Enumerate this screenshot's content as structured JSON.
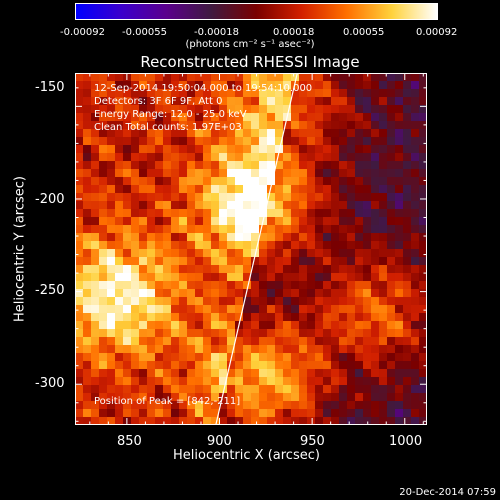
{
  "colorbar": {
    "tick_labels": [
      "-0.00092",
      "-0.00055",
      "-0.00018",
      "0.00018",
      "0.00055",
      "0.00092"
    ],
    "unit_label": "(photons cm⁻² s⁻¹ asec⁻²)",
    "colors": [
      "#0000ff",
      "#3b00cc",
      "#5a008c",
      "#401a40",
      "#7a0000",
      "#d22000",
      "#ff7000",
      "#ffd23c",
      "#ffffff"
    ]
  },
  "chart_data": {
    "type": "heatmap",
    "title": "Reconstructed RHESSI Image",
    "xlabel": "Heliocentric X (arcsec)",
    "ylabel": "Heliocentric Y (arcsec)",
    "xlim": [
      822,
      1012
    ],
    "ylim": [
      -322,
      -132
    ],
    "x_ticks": [
      850,
      900,
      950,
      1000
    ],
    "y_ticks": [
      -150,
      -200,
      -250,
      -300
    ],
    "sources": [
      {
        "x": 922,
        "y": -202,
        "value": 0.00085
      },
      {
        "x": 925,
        "y": -297,
        "value": 0.0008
      },
      {
        "x": 845,
        "y": -252,
        "value": 0.0007
      },
      {
        "x": 985,
        "y": -260,
        "value": 0.00055
      },
      {
        "x": 940,
        "y": -145,
        "value": 0.0005
      }
    ],
    "limb_line": [
      [
        942,
        -132
      ],
      [
        898,
        -322
      ]
    ],
    "peak_position": [
      842,
      -211
    ],
    "annotations": [
      "12-Sep-2014 19:50:04.000 to 19:54:10.000",
      "Detectors: 3F 6F 9F, Att 0",
      "Energy Range: 12.0 - 25.0 keV",
      "Clean    Total counts: 1.97E+03",
      "Position of Peak = [842,-211]"
    ],
    "colorbar_range": [
      -0.00092,
      0.00092
    ]
  },
  "footer": "20-Dec-2014 07:59"
}
